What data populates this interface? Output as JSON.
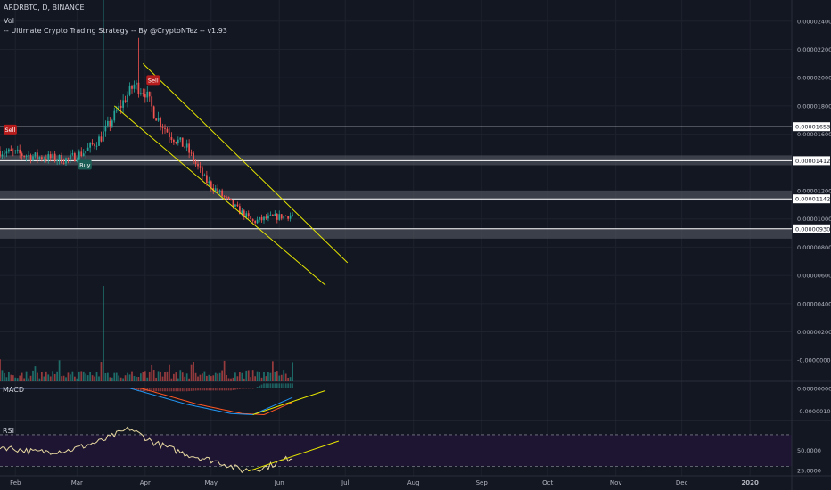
{
  "header": {
    "symbol_line": "ARDRBTC, D, BINANCE",
    "vol_label": "Vol",
    "strategy_line": "-- Ultimate Crypto Trading Strategy -- By @CryptoNTez -- v1.93"
  },
  "panes": {
    "macd_label": "MACD",
    "rsi_label": "RSI"
  },
  "colors": {
    "background": "#131722",
    "grid": "#1e222d",
    "up": "#26a69a",
    "down": "#ef5350",
    "channel": "#e6e600",
    "macd_line": "#2196f3",
    "signal_line": "#ff5722",
    "rsi_line": "#e8d9a0",
    "rsi_band": "#1e1533",
    "zone": "#4a4e57",
    "level_line": "#ffffff"
  },
  "chart_data": [
    {
      "type": "candlestick",
      "title": "ARDRBTC, D, BINANCE",
      "x_axis": {
        "ticks": [
          "Feb",
          "Mar",
          "Apr",
          "May",
          "Jun",
          "Jul",
          "Aug",
          "Sep",
          "Oct",
          "Nov",
          "Dec",
          "2020"
        ],
        "range": [
          "2019-01-25",
          "2020-01-20"
        ]
      },
      "y_axis": {
        "ticks": [
          "0.00002400",
          "0.00002200",
          "0.00002000",
          "0.00001800",
          "0.00001600",
          "0.00001200",
          "0.00001000",
          "0.00000800",
          "0.00000600",
          "0.00000400",
          "0.00000200",
          "-0.00000000"
        ],
        "tick_values": [
          2.4e-05,
          2.2e-05,
          2e-05,
          1.8e-05,
          1.6e-05,
          1.2e-05,
          1e-05,
          8e-06,
          6e-06,
          4e-06,
          2e-06,
          0
        ],
        "range": [
          -1.5e-06,
          2.55e-05
        ]
      },
      "price_levels": [
        {
          "label": "0.00001653",
          "value": 1.653e-05
        },
        {
          "label": "0.00001412",
          "value": 1.412e-05
        },
        {
          "label": "0.00001142",
          "value": 1.142e-05
        },
        {
          "label": "0.00000930",
          "value": 9.3e-06
        }
      ],
      "zones": [
        [
          1.38e-05,
          1.45e-05
        ],
        [
          1.13e-05,
          1.2e-05
        ],
        [
          8.6e-06,
          9.3e-06
        ]
      ],
      "price_anchors": [
        [
          "2019-01-25",
          1.48e-05
        ],
        [
          "2019-02-10",
          1.44e-05
        ],
        [
          "2019-02-25",
          1.42e-05
        ],
        [
          "2019-03-05",
          1.48e-05
        ],
        [
          "2019-03-12",
          1.58e-05
        ],
        [
          "2019-03-20",
          1.78e-05
        ],
        [
          "2019-03-27",
          1.95e-05
        ],
        [
          "2019-04-01",
          1.9e-05
        ],
        [
          "2019-04-05",
          1.75e-05
        ],
        [
          "2019-04-12",
          1.6e-05
        ],
        [
          "2019-04-20",
          1.5e-05
        ],
        [
          "2019-04-28",
          1.28e-05
        ],
        [
          "2019-05-05",
          1.18e-05
        ],
        [
          "2019-05-12",
          1.08e-05
        ],
        [
          "2019-05-20",
          9.8e-06
        ],
        [
          "2019-05-28",
          1.01e-05
        ],
        [
          "2019-06-04",
          1.02e-05
        ],
        [
          "2019-06-07",
          1.03e-05
        ]
      ],
      "channel_lines": [
        {
          "from": [
            "2019-03-31",
            2.1e-05
          ],
          "to": [
            "2019-07-02",
            6.9e-06
          ]
        },
        {
          "from": [
            "2019-03-18",
            1.8e-05
          ],
          "to": [
            "2019-06-22",
            5.3e-06
          ]
        }
      ],
      "signals": [
        {
          "text": "Sell",
          "date": "2019-01-27",
          "value": 1.63e-05
        },
        {
          "text": "Buy",
          "date": "2019-03-02",
          "value": 1.38e-05
        },
        {
          "text": "Sell",
          "date": "2019-04-02",
          "value": 1.98e-05
        }
      ]
    },
    {
      "type": "bar",
      "title": "Vol",
      "spike_date": "2019-03-13",
      "note": "volume histogram; largest spike mid-March"
    },
    {
      "type": "line",
      "title": "MACD",
      "y_axis": {
        "ticks": [
          "0.00000000",
          "-0.00000100"
        ],
        "tick_values": [
          0,
          -1e-06
        ],
        "range": [
          -1.4e-06,
          3e-07
        ]
      },
      "anchors_macd": [
        [
          "2019-01-25",
          0
        ],
        [
          "2019-03-25",
          0
        ],
        [
          "2019-04-20",
          -7e-07
        ],
        [
          "2019-05-10",
          -1.1e-06
        ],
        [
          "2019-05-20",
          -1.15e-06
        ],
        [
          "2019-06-07",
          -4e-07
        ]
      ],
      "trendline": {
        "from": [
          "2019-05-20",
          -1.15e-06
        ],
        "to": [
          "2019-06-22",
          -1e-07
        ]
      }
    },
    {
      "type": "line",
      "title": "RSI",
      "y_axis": {
        "ticks": [
          "50.0000",
          "25.0000"
        ],
        "tick_values": [
          50,
          25
        ],
        "range": [
          18,
          88
        ]
      },
      "band": [
        30,
        70
      ],
      "anchors": [
        [
          "2019-01-25",
          55
        ],
        [
          "2019-02-10",
          48
        ],
        [
          "2019-02-25",
          50
        ],
        [
          "2019-03-12",
          62
        ],
        [
          "2019-03-25",
          78
        ],
        [
          "2019-04-05",
          60
        ],
        [
          "2019-04-20",
          45
        ],
        [
          "2019-05-05",
          35
        ],
        [
          "2019-05-15",
          25
        ],
        [
          "2019-05-25",
          28
        ],
        [
          "2019-06-07",
          42
        ]
      ],
      "trendline": {
        "from": [
          "2019-05-18",
          24
        ],
        "to": [
          "2019-06-28",
          62
        ]
      }
    }
  ]
}
